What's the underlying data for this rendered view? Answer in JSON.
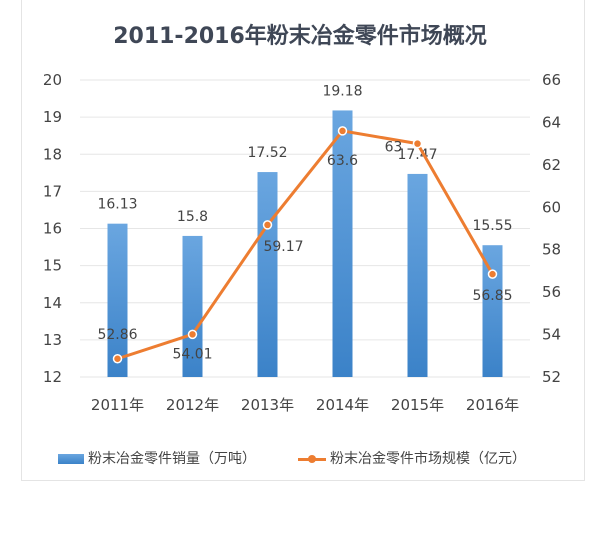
{
  "chart_data": {
    "type": "bar+line",
    "title": "2011-2016年粉末冶金零件市场概况",
    "categories": [
      "2011年",
      "2012年",
      "2013年",
      "2014年",
      "2015年",
      "2016年"
    ],
    "series": [
      {
        "name": "粉末冶金零件销量（万吨）",
        "type": "bar",
        "axis": "left",
        "values": [
          16.13,
          15.8,
          17.52,
          19.18,
          17.47,
          15.55
        ],
        "color": "#4a8fd4"
      },
      {
        "name": "粉末冶金零件市场规模（亿元）",
        "type": "line",
        "axis": "right",
        "values": [
          52.86,
          54.01,
          59.17,
          63.6,
          63,
          56.85
        ],
        "color": "#ed7d31"
      }
    ],
    "ylim_left": [
      12,
      20
    ],
    "yticks_left": [
      12,
      13,
      14,
      15,
      16,
      17,
      18,
      19,
      20
    ],
    "ylim_right": [
      52,
      66
    ],
    "yticks_right": [
      52,
      54,
      56,
      58,
      60,
      62,
      64,
      66
    ],
    "grid": true,
    "legend_position": "bottom"
  }
}
